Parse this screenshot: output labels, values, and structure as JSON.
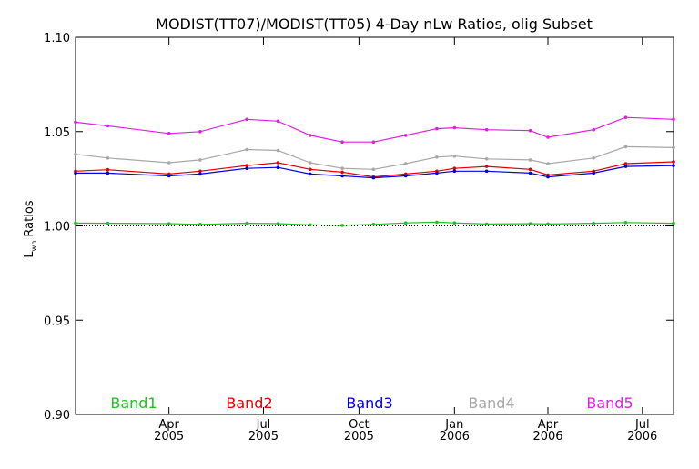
{
  "chart_data": {
    "type": "line",
    "title": "MODIST(TT07)/MODIST(TT05) 4-Day nLw Ratios, olig Subset",
    "ylabel_main": "L",
    "ylabel_sub": "wn",
    "ylabel_rest": " Ratios",
    "ylim": [
      0.9,
      1.1
    ],
    "y_ticks": [
      "1.10",
      "1.05",
      "1.00",
      "0.95",
      "0.90"
    ],
    "y_tick_values": [
      1.1,
      1.05,
      1.0,
      0.95,
      0.9
    ],
    "xlim": [
      "2005-01-01",
      "2006-07-31"
    ],
    "x_ticks": [
      {
        "date": "2005-04-01",
        "month": "Apr",
        "year": "2005"
      },
      {
        "date": "2005-07-01",
        "month": "Jul",
        "year": "2005"
      },
      {
        "date": "2005-10-01",
        "month": "Oct",
        "year": "2005"
      },
      {
        "date": "2006-01-01",
        "month": "Jan",
        "year": "2006"
      },
      {
        "date": "2006-04-01",
        "month": "Apr",
        "year": "2006"
      },
      {
        "date": "2006-07-01",
        "month": "Jul",
        "year": "2006"
      }
    ],
    "reference_line": 1.0,
    "x": [
      "2005-01-01",
      "2005-02-01",
      "2005-04-01",
      "2005-05-01",
      "2005-06-15",
      "2005-07-15",
      "2005-08-15",
      "2005-09-15",
      "2005-10-15",
      "2005-11-15",
      "2005-12-15",
      "2006-01-01",
      "2006-02-01",
      "2006-03-15",
      "2006-04-01",
      "2006-05-15",
      "2006-06-15",
      "2006-07-31"
    ],
    "series": [
      {
        "name": "Band1",
        "color": "#22c022",
        "values": [
          1.0015,
          1.0014,
          1.0012,
          1.0008,
          1.0014,
          1.0012,
          1.0006,
          1.0003,
          1.0008,
          1.0016,
          1.002,
          1.0016,
          1.001,
          1.0012,
          1.001,
          1.0014,
          1.0018,
          1.0014
        ]
      },
      {
        "name": "Band2",
        "color": "#e00000",
        "values": [
          1.029,
          1.0298,
          1.0275,
          1.029,
          1.032,
          1.0335,
          1.03,
          1.0285,
          1.026,
          1.0275,
          1.029,
          1.0305,
          1.0315,
          1.03,
          1.027,
          1.029,
          1.033,
          1.034
        ]
      },
      {
        "name": "Band3",
        "color": "#0000e0",
        "values": [
          1.028,
          1.028,
          1.0265,
          1.0275,
          1.0305,
          1.031,
          1.0275,
          1.0265,
          1.0255,
          1.0265,
          1.028,
          1.029,
          1.029,
          1.028,
          1.026,
          1.028,
          1.0315,
          1.032
        ]
      },
      {
        "name": "Band4",
        "color": "#a8a8a8",
        "values": [
          1.038,
          1.036,
          1.0335,
          1.035,
          1.0405,
          1.04,
          1.0335,
          1.0305,
          1.03,
          1.033,
          1.0365,
          1.037,
          1.0355,
          1.035,
          1.033,
          1.036,
          1.042,
          1.0415
        ]
      },
      {
        "name": "Band5",
        "color": "#e020e0",
        "values": [
          1.055,
          1.053,
          1.049,
          1.05,
          1.0565,
          1.0555,
          1.048,
          1.0445,
          1.0445,
          1.048,
          1.0515,
          1.052,
          1.051,
          1.0505,
          1.047,
          1.051,
          1.0575,
          1.0565
        ]
      }
    ],
    "grid": false,
    "legend_placement": "bottom"
  }
}
